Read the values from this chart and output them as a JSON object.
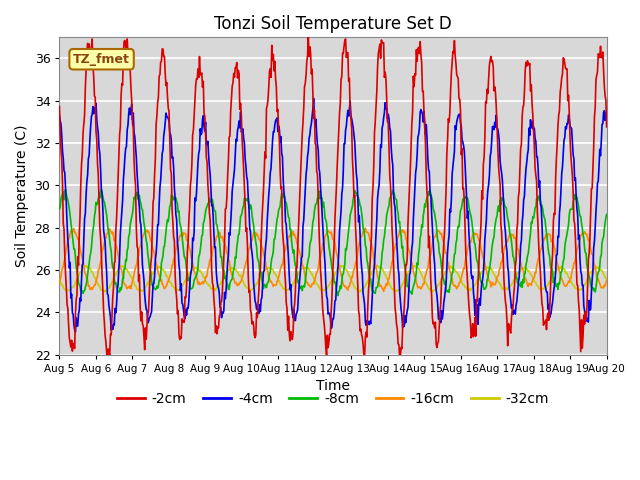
{
  "title": "Tonzi Soil Temperature Set D",
  "xlabel": "Time",
  "ylabel": "Soil Temperature (C)",
  "ylim": [
    22,
    37
  ],
  "yticks": [
    22,
    24,
    26,
    28,
    30,
    32,
    34,
    36
  ],
  "x_tick_labels": [
    "Aug 5",
    "Aug 6",
    "Aug 7",
    "Aug 8",
    "Aug 9",
    "Aug 10",
    "Aug 11",
    "Aug 12",
    "Aug 13",
    "Aug 14",
    "Aug 15",
    "Aug 16",
    "Aug 17",
    "Aug 18",
    "Aug 19",
    "Aug 20"
  ],
  "annotation_text": "TZ_fmet",
  "series": {
    "-2cm": {
      "color": "#dd0000",
      "linewidth": 1.2,
      "amp": 6.8,
      "mean": 29.5,
      "phase": 0.0,
      "min_amp": 22.5
    },
    "-4cm": {
      "color": "#0000ee",
      "linewidth": 1.2,
      "amp": 4.8,
      "mean": 28.5,
      "phase": 0.12,
      "min_amp": 24.0
    },
    "-8cm": {
      "color": "#00bb00",
      "linewidth": 1.2,
      "amp": 2.2,
      "mean": 27.3,
      "phase": 0.3,
      "min_amp": 25.0
    },
    "-16cm": {
      "color": "#ff8800",
      "linewidth": 1.2,
      "amp": 1.3,
      "mean": 26.5,
      "phase": 0.55,
      "min_amp": 25.0
    },
    "-32cm": {
      "color": "#cccc00",
      "linewidth": 1.2,
      "amp": 0.55,
      "mean": 25.6,
      "phase": 0.9,
      "min_amp": 25.0
    }
  },
  "background_color": "#ffffff",
  "plot_bg_color": "#d8d8d8",
  "grid_color": "#ffffff",
  "legend_labels": [
    "-2cm",
    "-4cm",
    "-8cm",
    "-16cm",
    "-32cm"
  ]
}
